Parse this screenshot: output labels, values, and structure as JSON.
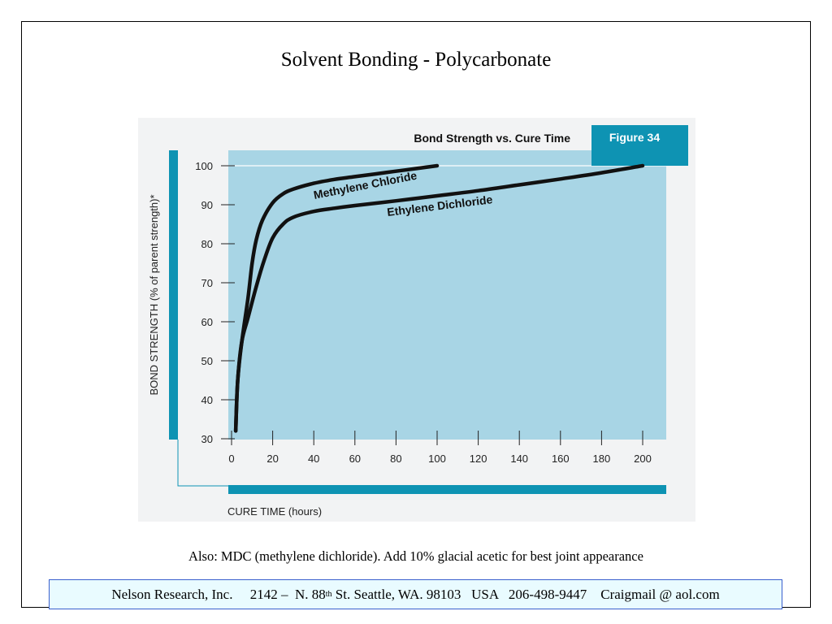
{
  "slide": {
    "title": "Solvent Bonding - Polycarbonate",
    "note": "Also:  MDC (methylene dichloride). Add 10% glacial acetic for best joint appearance",
    "footer": {
      "company": "Nelson Research, Inc.",
      "address_pre": "2142 –  N. 88",
      "address_sup": "th",
      "address_post": " St. Seattle, WA. 98103   USA   206-498-9447    Craigmail @ aol.com"
    }
  },
  "colors": {
    "plot_bg": "#a8d5e5",
    "accent": "#0e93b3",
    "curve": "#111111",
    "panel_bg": "#f2f3f4"
  },
  "chart_data": {
    "type": "line",
    "title": "Bond Strength vs. Cure Time",
    "badge": "Figure 34",
    "xlabel": "CURE TIME (hours)",
    "ylabel": "BOND STRENGTH (% of parent strength)*",
    "xlim": [
      0,
      200
    ],
    "ylim": [
      30,
      100
    ],
    "x_ticks": [
      0,
      20,
      40,
      60,
      80,
      100,
      120,
      140,
      160,
      180,
      200
    ],
    "y_ticks": [
      30,
      40,
      50,
      60,
      70,
      80,
      90,
      100
    ],
    "grid": false,
    "series": [
      {
        "name": "Methylene Chloride",
        "points": [
          [
            2,
            32
          ],
          [
            3,
            45
          ],
          [
            5,
            55
          ],
          [
            8,
            66
          ],
          [
            10,
            75
          ],
          [
            12,
            81
          ],
          [
            15,
            86
          ],
          [
            20,
            90.5
          ],
          [
            25,
            92.8
          ],
          [
            30,
            94
          ],
          [
            40,
            95.5
          ],
          [
            50,
            96.5
          ],
          [
            60,
            97.2
          ],
          [
            70,
            97.9
          ],
          [
            80,
            98.6
          ],
          [
            90,
            99.3
          ],
          [
            100,
            100
          ]
        ]
      },
      {
        "name": "Ethylene Dichloride",
        "points": [
          [
            2,
            32
          ],
          [
            3,
            45
          ],
          [
            5,
            55
          ],
          [
            8,
            61
          ],
          [
            12,
            69
          ],
          [
            16,
            76
          ],
          [
            20,
            81.5
          ],
          [
            25,
            85
          ],
          [
            30,
            86.8
          ],
          [
            40,
            88.3
          ],
          [
            50,
            89.1
          ],
          [
            60,
            89.8
          ],
          [
            80,
            91
          ],
          [
            100,
            92.3
          ],
          [
            120,
            93.6
          ],
          [
            140,
            95.1
          ],
          [
            160,
            96.6
          ],
          [
            180,
            98.2
          ],
          [
            200,
            100
          ]
        ]
      }
    ]
  }
}
